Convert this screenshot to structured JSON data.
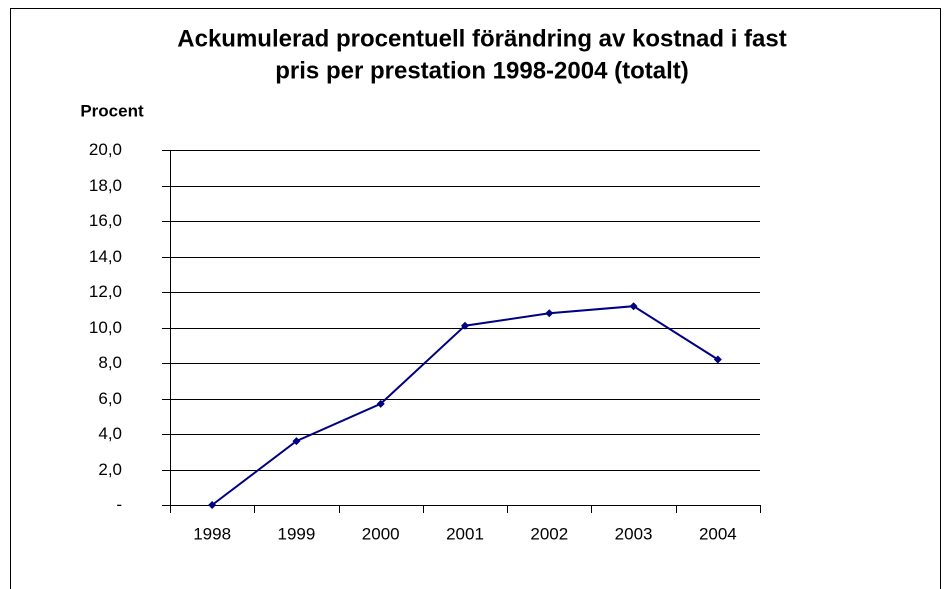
{
  "chart_data": {
    "type": "line",
    "title": [
      "Ackumulerad procentuell förändring av kostnad i fast",
      "pris per prestation 1998-2004 (totalt)"
    ],
    "y_label": "Procent",
    "categories": [
      "1998",
      "1999",
      "2000",
      "2001",
      "2002",
      "2003",
      "2004"
    ],
    "series": [
      {
        "color": "#000080",
        "values": [
          0,
          3.6,
          5.7,
          10.1,
          10.8,
          11.2,
          8.2
        ]
      }
    ],
    "ylim": [
      0,
      20
    ],
    "yticks": [
      {
        "value": 0,
        "label": "-"
      },
      {
        "value": 2,
        "label": "2,0"
      },
      {
        "value": 4,
        "label": "4,0"
      },
      {
        "value": 6,
        "label": "6,0"
      },
      {
        "value": 8,
        "label": "8,0"
      },
      {
        "value": 10,
        "label": "10,0"
      },
      {
        "value": 12,
        "label": "12,0"
      },
      {
        "value": 14,
        "label": "14,0"
      },
      {
        "value": 16,
        "label": "16,0"
      },
      {
        "value": 18,
        "label": "18,0"
      },
      {
        "value": 20,
        "label": "20,0"
      }
    ],
    "grid": true
  }
}
